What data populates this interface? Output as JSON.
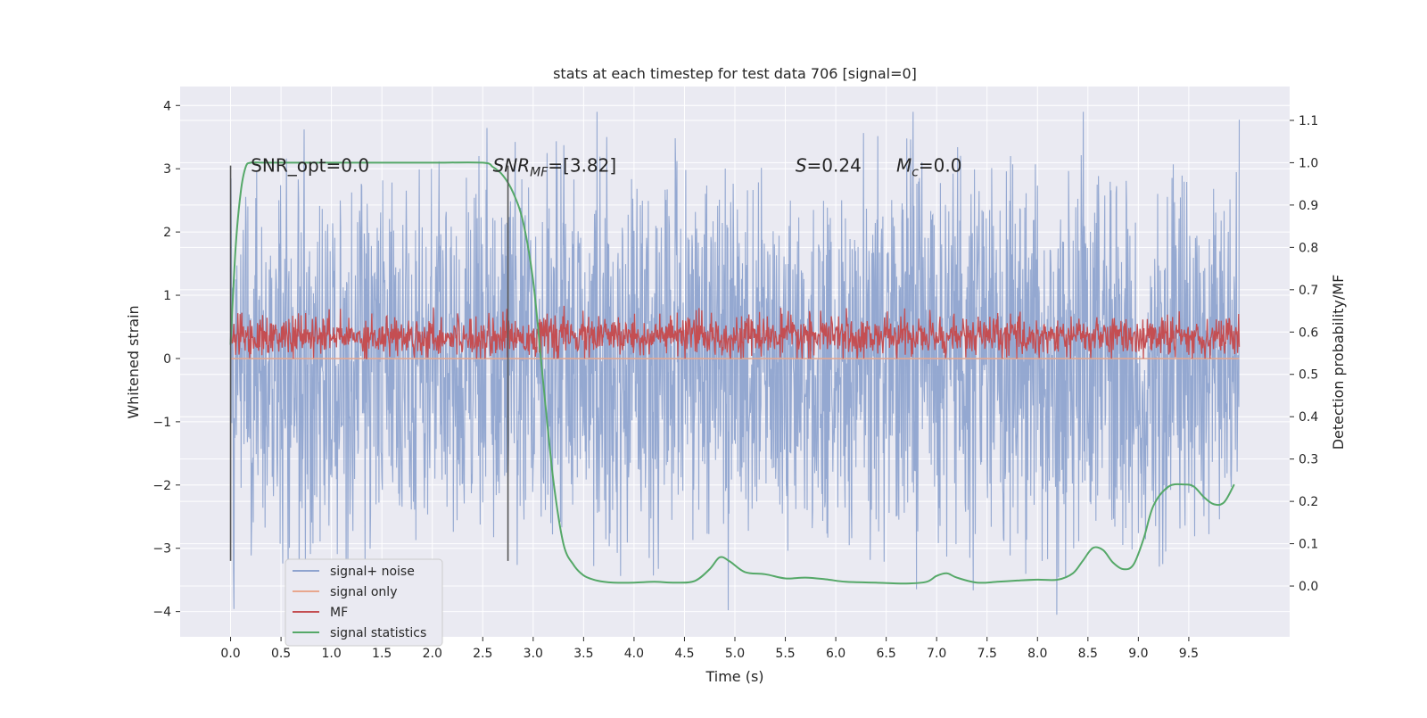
{
  "chart_data": {
    "type": "line",
    "title": "stats at each timestep for test data 706 [signal=0]",
    "xlabel": "Time (s)",
    "ylabel": "Whitened strain",
    "y2label": "Detection probability/MF",
    "xlim": [
      -0.5,
      10.5
    ],
    "ylim": [
      -4.4,
      4.3
    ],
    "y2lim": [
      -0.12,
      1.18
    ],
    "x_ticks": [
      0.0,
      0.5,
      1.0,
      1.5,
      2.0,
      2.5,
      3.0,
      3.5,
      4.0,
      4.5,
      5.0,
      5.5,
      6.0,
      6.5,
      7.0,
      7.5,
      8.0,
      8.5,
      9.0,
      9.5
    ],
    "x_tick_labels": [
      "0.0",
      "0.5",
      "1.0",
      "1.5",
      "2.0",
      "2.5",
      "3.0",
      "3.5",
      "4.0",
      "4.5",
      "5.0",
      "5.5",
      "6.0",
      "6.5",
      "7.0",
      "7.5",
      "8.0",
      "8.5",
      "9.0",
      "9.5"
    ],
    "y_ticks": [
      -4,
      -3,
      -2,
      -1,
      0,
      1,
      2,
      3,
      4
    ],
    "y_tick_labels": [
      "−4",
      "−3",
      "−2",
      "−1",
      "0",
      "1",
      "2",
      "3",
      "4"
    ],
    "y2_ticks": [
      0.0,
      0.1,
      0.2,
      0.3,
      0.4,
      0.5,
      0.6,
      0.7,
      0.8,
      0.9,
      1.0,
      1.1
    ],
    "y2_tick_labels": [
      "0.0",
      "0.1",
      "0.2",
      "0.3",
      "0.4",
      "0.5",
      "0.6",
      "0.7",
      "0.8",
      "0.9",
      "1.0",
      "1.1"
    ],
    "grid": true,
    "legend_position": "lower-left",
    "series": [
      {
        "name": "signal+ noise",
        "color": "#8fa4cf",
        "axis": "left",
        "x_range": [
          0.0,
          10.0
        ],
        "envelope": {
          "mean": 0.0,
          "typical_abs": 2.5,
          "peak_max": 3.9,
          "peak_min": -4.05
        }
      },
      {
        "name": "signal only",
        "color": "#e8a78e",
        "axis": "left",
        "x_range": [
          0.0,
          10.0
        ],
        "values_note": "flat at 0"
      },
      {
        "name": "MF",
        "color": "#c44e52",
        "axis": "left",
        "x_range": [
          0.0,
          10.0
        ],
        "envelope": {
          "mean": 0.35,
          "min": 0.0,
          "max": 1.0
        }
      },
      {
        "name": "signal statistics",
        "color": "#55a868",
        "axis": "right",
        "x": [
          0.0,
          0.05,
          0.1,
          0.15,
          0.2,
          0.3,
          0.5,
          1.0,
          1.5,
          2.0,
          2.5,
          2.6,
          2.7,
          2.8,
          2.9,
          3.0,
          3.1,
          3.2,
          3.3,
          3.4,
          3.5,
          3.6,
          3.7,
          3.8,
          4.0,
          4.2,
          4.4,
          4.6,
          4.75,
          4.85,
          4.95,
          5.1,
          5.3,
          5.5,
          5.7,
          5.9,
          6.1,
          6.4,
          6.7,
          6.9,
          7.0,
          7.1,
          7.2,
          7.4,
          7.6,
          7.8,
          8.0,
          8.2,
          8.35,
          8.45,
          8.55,
          8.65,
          8.75,
          8.85,
          8.95,
          9.05,
          9.15,
          9.3,
          9.45,
          9.55,
          9.65,
          9.75,
          9.85,
          9.95
        ],
        "values": [
          0.57,
          0.8,
          0.93,
          0.99,
          1.0,
          1.0,
          1.0,
          1.0,
          1.0,
          1.0,
          1.0,
          0.99,
          0.97,
          0.93,
          0.86,
          0.72,
          0.48,
          0.25,
          0.1,
          0.05,
          0.025,
          0.015,
          0.01,
          0.008,
          0.008,
          0.01,
          0.008,
          0.012,
          0.04,
          0.068,
          0.058,
          0.033,
          0.028,
          0.018,
          0.02,
          0.016,
          0.01,
          0.008,
          0.006,
          0.01,
          0.024,
          0.03,
          0.02,
          0.008,
          0.01,
          0.013,
          0.015,
          0.015,
          0.03,
          0.06,
          0.09,
          0.085,
          0.055,
          0.04,
          0.05,
          0.11,
          0.19,
          0.235,
          0.24,
          0.235,
          0.21,
          0.193,
          0.198,
          0.24
        ]
      }
    ],
    "vertical_markers": [
      {
        "x": 0.0,
        "y_from": -3.2,
        "y_to": 3.05,
        "color": "#555555"
      },
      {
        "x": 2.75,
        "y_from": -3.2,
        "y_to": 3.05,
        "color": "#555555"
      }
    ],
    "annotations": [
      {
        "id": "snr-opt",
        "text": "SNR_opt=0.0",
        "x": 0.2,
        "y": 2.95
      },
      {
        "id": "snr-mf",
        "text_main": "SNR",
        "text_sub": "MF",
        "text_rest": "=[3.82]",
        "x": 2.6,
        "y": 2.95
      },
      {
        "id": "s-value",
        "text_main": "S",
        "text_rest": "=0.24",
        "x": 5.6,
        "y": 2.95
      },
      {
        "id": "mc-value",
        "text_main": "M",
        "text_sub": "c",
        "text_rest": "=0.0",
        "x": 6.6,
        "y": 2.95
      }
    ]
  }
}
